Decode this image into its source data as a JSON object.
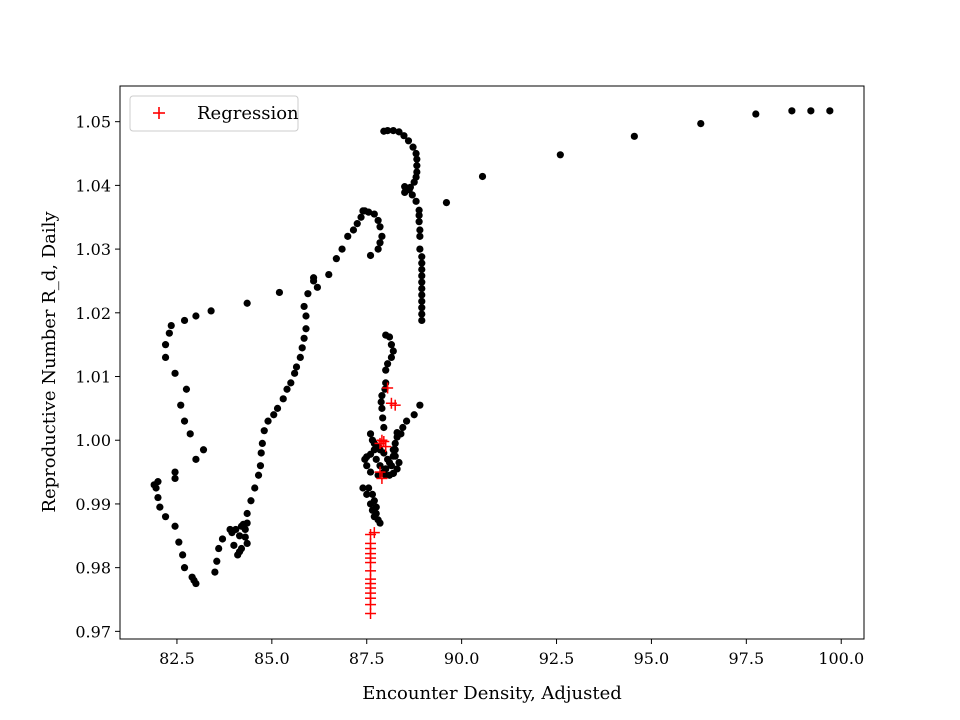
{
  "chart_data": {
    "type": "scatter",
    "title": "",
    "xlabel": "Encounter Density, Adjusted",
    "ylabel": "Reproductive Number R_d, Daily",
    "xlim": [
      81.0,
      100.6
    ],
    "ylim": [
      0.9688,
      1.0556
    ],
    "xticks": [
      "82.5",
      "85.0",
      "87.5",
      "90.0",
      "92.5",
      "95.0",
      "97.5",
      "100.0"
    ],
    "yticks": [
      "0.97",
      "0.98",
      "0.99",
      "1.00",
      "1.01",
      "1.02",
      "1.03",
      "1.04",
      "1.05"
    ],
    "grid": false,
    "legend": {
      "position": "top-left",
      "entries": [
        "Regression"
      ]
    },
    "series": [
      {
        "marker": "dot",
        "color": "#000000",
        "points": [
          [
            99.7,
            1.0517
          ],
          [
            99.2,
            1.0517
          ],
          [
            98.7,
            1.0517
          ],
          [
            97.75,
            1.0512
          ],
          [
            96.3,
            1.0497
          ],
          [
            94.55,
            1.0477
          ],
          [
            92.6,
            1.0448
          ],
          [
            90.55,
            1.0414
          ],
          [
            89.6,
            1.0373
          ],
          [
            88.95,
            1.0188
          ],
          [
            88.95,
            1.0198
          ],
          [
            88.95,
            1.0208
          ],
          [
            88.95,
            1.0218
          ],
          [
            88.95,
            1.0228
          ],
          [
            88.95,
            1.0238
          ],
          [
            88.95,
            1.0248
          ],
          [
            88.95,
            1.0258
          ],
          [
            88.95,
            1.0268
          ],
          [
            88.95,
            1.0278
          ],
          [
            88.95,
            1.0288
          ],
          [
            88.9,
            1.03
          ],
          [
            88.9,
            1.032
          ],
          [
            88.9,
            1.033
          ],
          [
            88.88,
            1.0343
          ],
          [
            88.88,
            1.0353
          ],
          [
            88.88,
            1.0361
          ],
          [
            88.8,
            1.0375
          ],
          [
            88.7,
            1.0385
          ],
          [
            88.62,
            1.0393
          ],
          [
            88.5,
            1.0398
          ],
          [
            88.5,
            1.0389
          ],
          [
            88.65,
            1.0397
          ],
          [
            88.75,
            1.0405
          ],
          [
            88.8,
            1.0413
          ],
          [
            88.82,
            1.0421
          ],
          [
            88.82,
            1.0431
          ],
          [
            88.82,
            1.0441
          ],
          [
            88.8,
            1.045
          ],
          [
            88.72,
            1.046
          ],
          [
            88.6,
            1.047
          ],
          [
            88.48,
            1.0478
          ],
          [
            88.35,
            1.0484
          ],
          [
            88.2,
            1.0486
          ],
          [
            88.05,
            1.0486
          ],
          [
            87.95,
            1.0485
          ],
          [
            88.0,
            1.0165
          ],
          [
            88.1,
            1.0162
          ],
          [
            88.15,
            1.015
          ],
          [
            88.2,
            1.014
          ],
          [
            88.15,
            1.013
          ],
          [
            88.05,
            1.012
          ],
          [
            88.0,
            1.011
          ],
          [
            88.0,
            1.009
          ],
          [
            87.98,
            1.008
          ],
          [
            87.9,
            1.007
          ],
          [
            87.88,
            1.006
          ],
          [
            87.9,
            1.005
          ],
          [
            87.92,
            1.0035
          ],
          [
            87.95,
            1.002
          ],
          [
            87.6,
            1.029
          ],
          [
            87.8,
            1.03
          ],
          [
            87.85,
            1.031
          ],
          [
            87.9,
            1.032
          ],
          [
            87.85,
            1.0335
          ],
          [
            87.8,
            1.0345
          ],
          [
            87.7,
            1.0355
          ],
          [
            87.55,
            1.0358
          ],
          [
            87.4,
            1.036
          ],
          [
            87.6,
            1.001
          ],
          [
            87.65,
            1.0
          ],
          [
            87.7,
            0.9995
          ],
          [
            87.8,
            0.999
          ],
          [
            87.7,
            0.9985
          ],
          [
            87.6,
            0.9978
          ],
          [
            87.5,
            0.9974
          ],
          [
            87.45,
            0.997
          ],
          [
            87.5,
            0.996
          ],
          [
            87.6,
            0.995
          ],
          [
            87.8,
            0.9945
          ],
          [
            88.0,
            0.9945
          ],
          [
            88.2,
            0.9948
          ],
          [
            88.3,
            0.9955
          ],
          [
            88.35,
            0.9965
          ],
          [
            88.25,
            0.9975
          ],
          [
            88.2,
            0.9985
          ],
          [
            88.25,
            0.9995
          ],
          [
            88.3,
            1.0005
          ],
          [
            88.4,
            1.001
          ],
          [
            87.75,
            0.997
          ],
          [
            87.85,
            0.996
          ],
          [
            87.95,
            0.995
          ],
          [
            88.1,
            0.9945
          ],
          [
            88.2,
            0.9948
          ],
          [
            88.15,
            0.996
          ],
          [
            88.05,
            0.997
          ],
          [
            87.95,
            0.998
          ],
          [
            87.85,
            0.9985
          ],
          [
            87.55,
            0.9925
          ],
          [
            87.65,
            0.9915
          ],
          [
            87.7,
            0.9905
          ],
          [
            87.75,
            0.9895
          ],
          [
            87.75,
            0.9885
          ],
          [
            87.8,
            0.9875
          ],
          [
            87.85,
            0.987
          ],
          [
            87.7,
            0.988
          ],
          [
            87.65,
            0.989
          ],
          [
            87.6,
            0.99
          ],
          [
            87.5,
            0.9915
          ],
          [
            87.4,
            0.9925
          ],
          [
            88.0,
            0.9955
          ],
          [
            88.1,
            0.9965
          ],
          [
            88.2,
            0.9975
          ],
          [
            88.25,
            0.9985
          ],
          [
            88.3,
            1.0012
          ],
          [
            88.45,
            1.002
          ],
          [
            88.55,
            1.003
          ],
          [
            88.75,
            1.004
          ],
          [
            88.9,
            1.0055
          ],
          [
            86.2,
            1.024
          ],
          [
            86.5,
            1.026
          ],
          [
            86.7,
            1.0285
          ],
          [
            86.85,
            1.03
          ],
          [
            87.0,
            1.032
          ],
          [
            87.15,
            1.033
          ],
          [
            87.25,
            1.034
          ],
          [
            87.35,
            1.035
          ],
          [
            87.45,
            1.036
          ],
          [
            85.9,
            1.0195
          ],
          [
            85.9,
            1.0175
          ],
          [
            85.85,
            1.016
          ],
          [
            85.8,
            1.0145
          ],
          [
            85.75,
            1.013
          ],
          [
            85.65,
            1.0115
          ],
          [
            85.6,
            1.0105
          ],
          [
            85.5,
            1.009
          ],
          [
            85.4,
            1.008
          ],
          [
            85.3,
            1.0065
          ],
          [
            85.15,
            1.005
          ],
          [
            85.05,
            1.004
          ],
          [
            85.85,
            1.021
          ],
          [
            85.95,
            1.023
          ],
          [
            86.1,
            1.025
          ],
          [
            84.9,
            1.003
          ],
          [
            84.8,
            1.0015
          ],
          [
            84.75,
            0.9995
          ],
          [
            84.72,
            0.998
          ],
          [
            84.7,
            0.996
          ],
          [
            84.65,
            0.9945
          ],
          [
            84.55,
            0.9925
          ],
          [
            84.45,
            0.9905
          ],
          [
            84.35,
            0.9885
          ],
          [
            84.35,
            0.987
          ],
          [
            84.3,
            0.986
          ],
          [
            84.3,
            0.9848
          ],
          [
            84.35,
            0.9838
          ],
          [
            84.2,
            0.983
          ],
          [
            84.15,
            0.9825
          ],
          [
            84.1,
            0.982
          ],
          [
            84.0,
            0.9835
          ],
          [
            83.95,
            0.9855
          ],
          [
            83.9,
            0.986
          ],
          [
            84.05,
            0.986
          ],
          [
            84.15,
            0.985
          ],
          [
            84.25,
            0.9868
          ],
          [
            84.2,
            0.9865
          ],
          [
            83.7,
            0.9845
          ],
          [
            83.6,
            0.983
          ],
          [
            83.55,
            0.981
          ],
          [
            83.5,
            0.9793
          ],
          [
            83.0,
            0.9775
          ],
          [
            82.95,
            0.978
          ],
          [
            82.9,
            0.9785
          ],
          [
            82.7,
            0.98
          ],
          [
            82.65,
            0.982
          ],
          [
            82.55,
            0.984
          ],
          [
            82.45,
            0.9865
          ],
          [
            82.2,
            0.988
          ],
          [
            82.05,
            0.9895
          ],
          [
            82.0,
            0.991
          ],
          [
            81.95,
            0.9925
          ],
          [
            81.9,
            0.993
          ],
          [
            82.0,
            0.9935
          ],
          [
            82.45,
            0.994
          ],
          [
            82.45,
            0.995
          ],
          [
            82.85,
            1.001
          ],
          [
            82.7,
            1.003
          ],
          [
            82.6,
            1.0055
          ],
          [
            82.75,
            1.008
          ],
          [
            82.45,
            1.0105
          ],
          [
            82.2,
            1.013
          ],
          [
            82.2,
            1.015
          ],
          [
            82.3,
            1.0168
          ],
          [
            82.35,
            1.018
          ],
          [
            82.7,
            1.0188
          ],
          [
            83.0,
            1.0195
          ],
          [
            83.4,
            1.0203
          ],
          [
            84.35,
            1.0215
          ],
          [
            85.2,
            1.0232
          ],
          [
            86.1,
            1.0255
          ],
          [
            83.2,
            0.9985
          ],
          [
            83.0,
            0.997
          ]
        ]
      },
      {
        "name": "Regression",
        "marker": "plus",
        "color": "#ff0000",
        "points": [
          [
            87.6,
            0.9728
          ],
          [
            87.6,
            0.9742
          ],
          [
            87.6,
            0.9752
          ],
          [
            87.6,
            0.976
          ],
          [
            87.6,
            0.9768
          ],
          [
            87.6,
            0.9775
          ],
          [
            87.6,
            0.9782
          ],
          [
            87.6,
            0.9795
          ],
          [
            87.6,
            0.9808
          ],
          [
            87.6,
            0.9815
          ],
          [
            87.6,
            0.9822
          ],
          [
            87.6,
            0.983
          ],
          [
            87.6,
            0.9838
          ],
          [
            87.6,
            0.9852
          ],
          [
            87.7,
            0.9855
          ],
          [
            87.85,
            0.9995
          ],
          [
            87.9,
            1.0
          ],
          [
            87.95,
            0.9998
          ],
          [
            88.0,
            0.999
          ],
          [
            87.85,
            0.995
          ],
          [
            87.9,
            0.994
          ],
          [
            88.05,
            1.0082
          ],
          [
            88.15,
            1.0058
          ],
          [
            88.25,
            1.0055
          ]
        ]
      }
    ]
  }
}
